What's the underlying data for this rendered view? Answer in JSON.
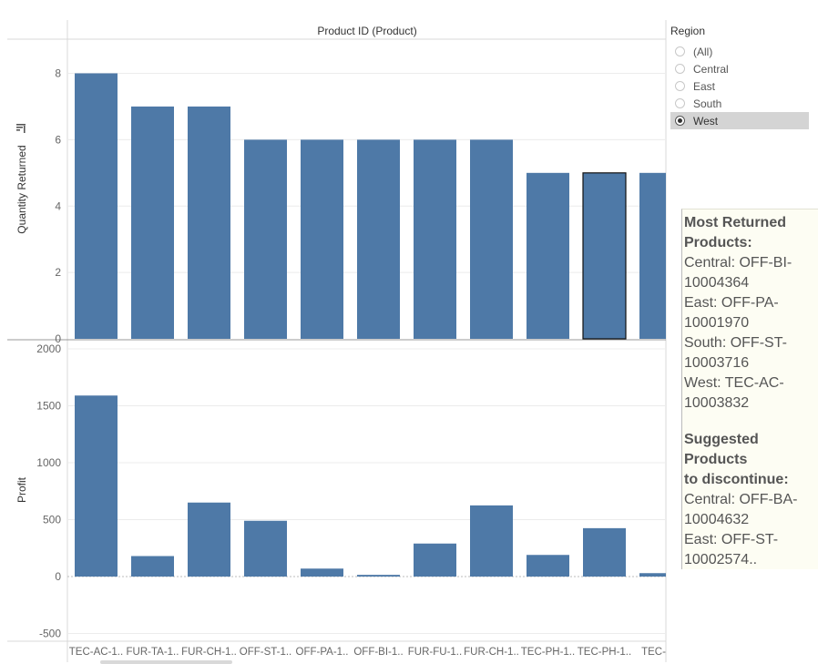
{
  "chart_data": {
    "type": "bar",
    "title": "Product ID (Product)",
    "categories": [
      "TEC-AC-1..",
      "FUR-TA-1..",
      "FUR-CH-1..",
      "OFF-ST-1..",
      "OFF-PA-1..",
      "OFF-BI-1..",
      "FUR-FU-1..",
      "FUR-CH-1..",
      "TEC-PH-1..",
      "TEC-PH-1..",
      "TEC-AC"
    ],
    "panels": [
      {
        "name": "quantity",
        "ylabel": "Quantity Returned",
        "ylim": [
          0,
          8.6
        ],
        "ticks": [
          0,
          2,
          4,
          6,
          8
        ],
        "tick_labels": [
          "0",
          "2",
          "4",
          "6",
          "8"
        ],
        "values": [
          8,
          7,
          7,
          6,
          6,
          6,
          6,
          6,
          5,
          5,
          5
        ]
      },
      {
        "name": "profit",
        "ylabel": "Profit",
        "ylim": [
          -540,
          2000
        ],
        "ticks": [
          -500,
          0,
          500,
          1000,
          1500,
          2000
        ],
        "tick_labels": [
          "-500",
          "0",
          "500",
          "1000",
          "1500",
          "2000"
        ],
        "values": [
          1590,
          180,
          650,
          490,
          70,
          15,
          290,
          625,
          190,
          425,
          30
        ]
      }
    ],
    "highlighted_index": 9,
    "bar_color": "#4e79a7",
    "grid": true
  },
  "legend": {
    "title": "Region",
    "items": [
      {
        "label": "(All)",
        "selected": false
      },
      {
        "label": "Central",
        "selected": false
      },
      {
        "label": "East",
        "selected": false
      },
      {
        "label": "South",
        "selected": false
      },
      {
        "label": "West",
        "selected": true
      }
    ]
  },
  "annotation": {
    "heading1": "Most Returned\nProducts:",
    "lines1": [
      "Central: OFF-BI-\n10004364",
      "East: OFF-PA-\n10001970",
      "South: OFF-ST-\n10003716",
      "West: TEC-AC-\n10003832"
    ],
    "heading2": "Suggested Products\nto discontinue:",
    "lines2": [
      "Central: OFF-BA-\n10004632",
      "East: OFF-ST-\n10002574.."
    ]
  }
}
